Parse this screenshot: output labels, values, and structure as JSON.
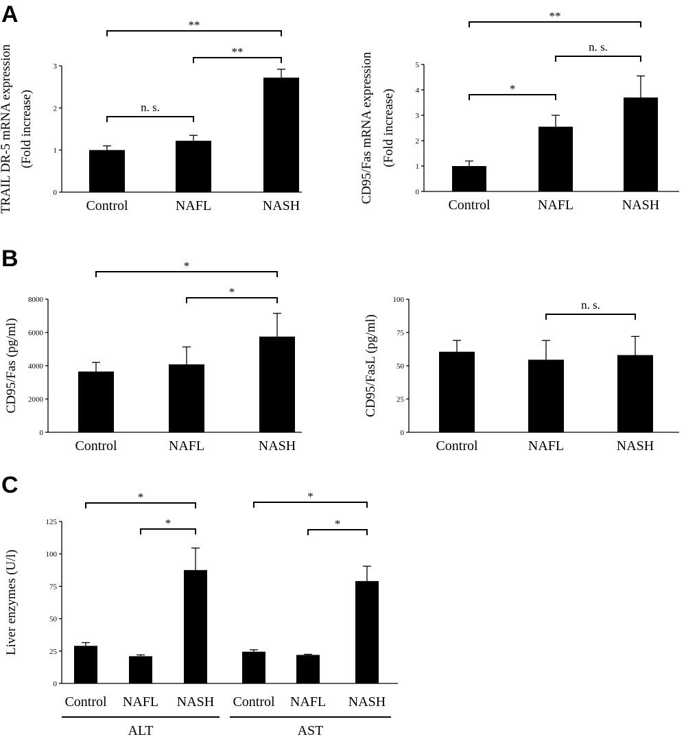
{
  "panels": [
    {
      "id": "A",
      "letter": "A"
    },
    {
      "id": "B",
      "letter": "B"
    },
    {
      "id": "C",
      "letter": "C"
    }
  ],
  "chart_data": [
    {
      "id": "A-left",
      "panel": "A",
      "type": "bar",
      "categories": [
        "Control",
        "NAFL",
        "NASH"
      ],
      "values": [
        1.0,
        1.22,
        2.72
      ],
      "errors": [
        0.1,
        0.13,
        0.2
      ],
      "ylabel_lines": [
        "TRAIL DR-5 mRNA expression",
        "(Fold increase)"
      ],
      "ylim": [
        0,
        3
      ],
      "yticks": [
        0,
        1,
        2,
        3
      ],
      "tick_labels": [
        "0",
        "1",
        "2",
        "3"
      ],
      "comparisons": [
        {
          "from": 0,
          "to": 1,
          "label": "n. s.",
          "level": 0
        },
        {
          "from": 1,
          "to": 2,
          "label": "**",
          "level": 1
        },
        {
          "from": 0,
          "to": 2,
          "label": "**",
          "level": 2
        }
      ]
    },
    {
      "id": "A-right",
      "panel": "A",
      "type": "bar",
      "categories": [
        "Control",
        "NAFL",
        "NASH"
      ],
      "values": [
        1.0,
        2.55,
        3.7
      ],
      "errors": [
        0.2,
        0.45,
        0.85
      ],
      "ylabel_lines": [
        "CD95/Fas mRNA expression",
        "(Fold increase)"
      ],
      "ylim": [
        0,
        5
      ],
      "yticks": [
        0,
        1,
        2,
        3,
        4,
        5
      ],
      "tick_labels": [
        "0",
        "1",
        "2",
        "3",
        "4",
        "5"
      ],
      "comparisons": [
        {
          "from": 0,
          "to": 1,
          "label": "*",
          "level": 0
        },
        {
          "from": 1,
          "to": 2,
          "label": "n. s.",
          "level": 1
        },
        {
          "from": 0,
          "to": 2,
          "label": "**",
          "level": 2
        }
      ]
    },
    {
      "id": "B-left",
      "panel": "B",
      "type": "bar",
      "categories": [
        "Control",
        "NAFL",
        "NASH"
      ],
      "values": [
        3650,
        4080,
        5750
      ],
      "errors": [
        550,
        1050,
        1400
      ],
      "ylabel_lines": [
        "CD95/Fas (pg/ml)"
      ],
      "ylim": [
        0,
        8000
      ],
      "yticks": [
        0,
        2000,
        4000,
        6000,
        8000
      ],
      "tick_labels": [
        "0",
        "2000",
        "4000",
        "6000",
        "8000"
      ],
      "comparisons": [
        {
          "from": 1,
          "to": 2,
          "label": "*",
          "level": 0
        },
        {
          "from": 0,
          "to": 2,
          "label": "*",
          "level": 1
        }
      ]
    },
    {
      "id": "B-right",
      "panel": "B",
      "type": "bar",
      "categories": [
        "Control",
        "NAFL",
        "NASH"
      ],
      "values": [
        60.5,
        54.5,
        58
      ],
      "errors": [
        8.5,
        14.5,
        14
      ],
      "ylabel_lines": [
        "CD95/FasL (pg/ml)"
      ],
      "ylim": [
        0,
        100
      ],
      "yticks": [
        0,
        25,
        50,
        75,
        100
      ],
      "tick_labels": [
        "0",
        "25",
        "50",
        "75",
        "100"
      ],
      "comparisons": [
        {
          "from": 1,
          "to": 2,
          "label": "n. s.",
          "level": 0
        }
      ]
    },
    {
      "id": "C",
      "panel": "C",
      "type": "bar",
      "categories": [
        "Control",
        "NAFL",
        "NASH",
        "Control",
        "NAFL",
        "NASH"
      ],
      "groups": [
        {
          "label": "ALT",
          "indices": [
            0,
            1,
            2
          ]
        },
        {
          "label": "AST",
          "indices": [
            3,
            4,
            5
          ]
        }
      ],
      "values": [
        29,
        21,
        87.5,
        24.5,
        22,
        79
      ],
      "errors": [
        2.5,
        1,
        17,
        1.5,
        0.5,
        11.5
      ],
      "ylabel_lines": [
        "Liver enzymes (U/l)"
      ],
      "ylim": [
        0,
        125
      ],
      "yticks": [
        0,
        25,
        50,
        75,
        100,
        125
      ],
      "tick_labels": [
        "0",
        "25",
        "50",
        "75",
        "100",
        "125"
      ],
      "comparisons": [
        {
          "from": 1,
          "to": 2,
          "label": "*",
          "level": 0
        },
        {
          "from": 0,
          "to": 2,
          "label": "*",
          "level": 1
        },
        {
          "from": 4,
          "to": 5,
          "label": "*",
          "level": 0
        },
        {
          "from": 3,
          "to": 5,
          "label": "*",
          "level": 1
        }
      ]
    }
  ]
}
